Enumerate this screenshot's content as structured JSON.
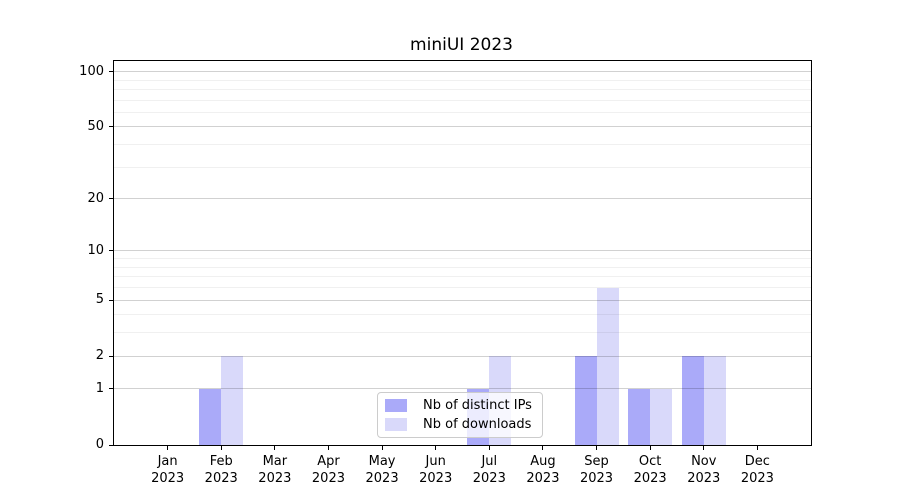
{
  "chart_data": {
    "type": "bar",
    "title": "miniUI 2023",
    "categories": [
      "Jan 2023",
      "Feb 2023",
      "Mar 2023",
      "Apr 2023",
      "May 2023",
      "Jun 2023",
      "Jul 2023",
      "Aug 2023",
      "Sep 2023",
      "Oct 2023",
      "Nov 2023",
      "Dec 2023"
    ],
    "series": [
      {
        "name": "Nb of distinct IPs",
        "color": "#aaaaf9",
        "values": [
          0,
          1,
          0,
          0,
          0,
          0,
          1,
          0,
          2,
          1,
          2,
          0
        ]
      },
      {
        "name": "Nb of downloads",
        "color": "#d9d9fa",
        "values": [
          0,
          2,
          0,
          0,
          0,
          0,
          2,
          0,
          6,
          1,
          2,
          0
        ]
      }
    ],
    "yscale": "log1p",
    "ylim": [
      0,
      115
    ],
    "yticks": [
      0,
      1,
      2,
      5,
      10,
      20,
      50,
      100
    ],
    "yminor_gridlines": [
      3,
      4,
      6,
      7,
      8,
      9,
      30,
      40,
      60,
      70,
      80,
      90
    ],
    "grid": true,
    "legend_position": "bottom-center-inside",
    "style": {
      "grid_major": "rgba(0,0,0,0.18)",
      "grid_minor": "rgba(0,0,0,0.06)",
      "spine": "#000000",
      "legend_border": "#cccccc",
      "background": "#ffffff",
      "text": "#000000"
    }
  }
}
